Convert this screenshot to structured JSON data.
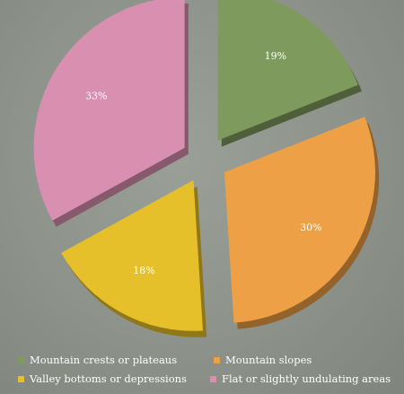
{
  "chart_data": {
    "type": "pie",
    "title": "",
    "slices": [
      {
        "label": "Mountain crests or plateaus",
        "value": 19,
        "display": "19%",
        "color": "#7e9a5c"
      },
      {
        "label": "Mountain slopes",
        "value": 30,
        "display": "30%",
        "color": "#eea047"
      },
      {
        "label": "Valley bottoms or depressions",
        "value": 18,
        "display": "18%",
        "color": "#e6c02a"
      },
      {
        "label": "Flat or slightly undulating areas",
        "value": 33,
        "display": "33%",
        "color": "#d98fb0"
      }
    ],
    "legend_position": "bottom",
    "exploded": true,
    "style": "3d"
  }
}
